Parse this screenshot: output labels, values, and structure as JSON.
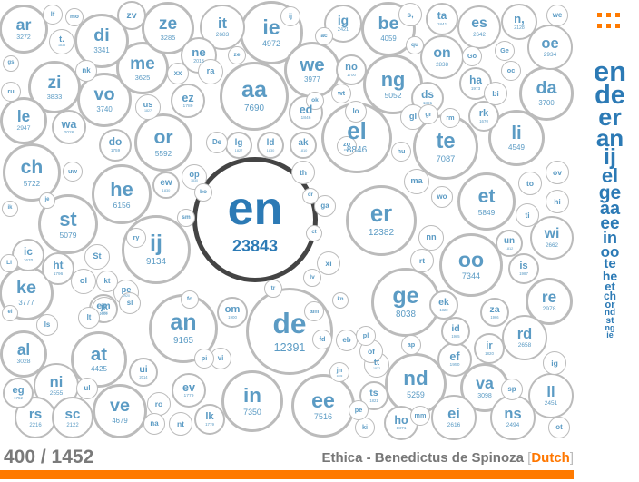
{
  "counter": "400 / 1452",
  "book": {
    "title": "Ethica - Benedictus de Spinoza",
    "bracket_open": "[",
    "language": "Dutch",
    "bracket_close": "]"
  },
  "menu_icon": "grid-dots-icon",
  "colors": {
    "accent": "#ff7a00",
    "bubble_text": "#5b9bc4",
    "bubble_border": "#bbbbbb",
    "highlight_border": "#444444",
    "sidebar_text": "#2c7ab5"
  },
  "bubbles": [
    {
      "w": "en",
      "c": "23843"
    },
    {
      "w": "de",
      "c": "12391"
    },
    {
      "w": "er",
      "c": "12382"
    },
    {
      "w": "an",
      "c": "9165"
    },
    {
      "w": "ij",
      "c": "9134"
    },
    {
      "w": "el",
      "c": "8846"
    },
    {
      "w": "ge",
      "c": "8038"
    },
    {
      "w": "aa",
      "c": "7690"
    },
    {
      "w": "ee",
      "c": "7516"
    },
    {
      "w": "in",
      "c": "7350"
    },
    {
      "w": "oo",
      "c": "7344"
    },
    {
      "w": "te",
      "c": "7087"
    },
    {
      "w": "he",
      "c": "6156"
    },
    {
      "w": "et",
      "c": "5849"
    },
    {
      "w": "ch",
      "c": "5722"
    },
    {
      "w": "or",
      "c": "5592"
    },
    {
      "w": "nd",
      "c": "5259"
    },
    {
      "w": "st",
      "c": "5079"
    },
    {
      "w": "ng",
      "c": "5052"
    },
    {
      "w": "ie",
      "c": "4972"
    },
    {
      "w": "ve",
      "c": "4679"
    },
    {
      "w": "li",
      "c": "4549"
    },
    {
      "w": "at",
      "c": "4425"
    },
    {
      "w": "be",
      "c": "4059"
    },
    {
      "w": "we",
      "c": "3977"
    },
    {
      "w": "zi",
      "c": "3833"
    },
    {
      "w": "ke",
      "c": "3777"
    },
    {
      "w": "vo",
      "c": "3740"
    },
    {
      "w": "da",
      "c": "3700"
    },
    {
      "w": "me",
      "c": "3625"
    },
    {
      "w": "di",
      "c": "3341"
    },
    {
      "w": "ze",
      "c": "3285"
    },
    {
      "w": "ar",
      "c": "3272"
    },
    {
      "w": "va",
      "c": "3098"
    },
    {
      "w": "al",
      "c": "3028"
    },
    {
      "w": "re",
      "c": "2978"
    },
    {
      "w": "le",
      "c": "2947"
    },
    {
      "w": "oe",
      "c": "2934"
    },
    {
      "w": "on",
      "c": "2838"
    },
    {
      "w": "it",
      "c": "2683"
    },
    {
      "w": "wi",
      "c": "2662"
    },
    {
      "w": "rd",
      "c": "2658"
    },
    {
      "w": "es",
      "c": "2642"
    },
    {
      "w": "ei",
      "c": "2616"
    },
    {
      "w": "ni",
      "c": "2555"
    },
    {
      "w": "ll",
      "c": "2451"
    },
    {
      "w": "ns",
      "c": "2494"
    },
    {
      "w": "ig",
      "c": "2421"
    },
    {
      "w": "rs",
      "c": "2216"
    },
    {
      "w": "sc",
      "c": "2122"
    },
    {
      "w": "n,",
      "c": "2128"
    },
    {
      "w": "wa",
      "c": "2026"
    },
    {
      "w": "ne",
      "c": "2013"
    },
    {
      "w": "ef",
      "c": "1950"
    },
    {
      "w": "ds",
      "c": "1891"
    },
    {
      "w": "ta",
      "c": "1841"
    },
    {
      "w": "ho",
      "c": "1871"
    },
    {
      "w": "ed",
      "c": "1846"
    },
    {
      "w": "ht",
      "c": "1796"
    },
    {
      "w": "ez",
      "c": "1789"
    },
    {
      "w": "ev",
      "c": "1779"
    },
    {
      "w": "lk",
      "c": "1779"
    },
    {
      "w": "do",
      "c": "1759"
    },
    {
      "w": "eg",
      "c": "1752"
    },
    {
      "w": "ha",
      "c": "1973"
    },
    {
      "w": "no",
      "c": "1700"
    },
    {
      "w": "rk",
      "c": "1670"
    },
    {
      "w": "ic",
      "c": "1670"
    },
    {
      "w": "ld",
      "c": "1830"
    },
    {
      "w": "ir",
      "c": "1820"
    },
    {
      "w": "is",
      "c": "1987"
    },
    {
      "w": "ak",
      "c": "1810"
    },
    {
      "w": "us",
      "c": "1827"
    },
    {
      "w": "lg",
      "c": "1827"
    },
    {
      "w": "ew",
      "c": "1830"
    },
    {
      "w": "op",
      "c": "1830"
    },
    {
      "w": "om",
      "c": "1900"
    },
    {
      "w": "pe",
      "c": "1920"
    },
    {
      "w": "em",
      "c": "1904"
    },
    {
      "w": "ui",
      "c": "2014"
    },
    {
      "w": "jk",
      "c": "2091"
    },
    {
      "w": "za",
      "c": "1966"
    },
    {
      "w": "id",
      "c": "1985"
    },
    {
      "w": "tt",
      "c": "1832"
    },
    {
      "w": "t.",
      "c": "1835"
    },
    {
      "w": "un",
      "c": "1812"
    },
    {
      "w": "ts",
      "c": "1821"
    },
    {
      "w": "ek",
      "c": "1820"
    },
    {
      "w": "ra",
      "c": ""
    },
    {
      "w": "s,",
      "c": ""
    },
    {
      "w": "St",
      "c": ""
    },
    {
      "w": "ol",
      "c": ""
    },
    {
      "w": "nn",
      "c": ""
    },
    {
      "w": "ti",
      "c": ""
    },
    {
      "w": "hi",
      "c": ""
    },
    {
      "w": "ov",
      "c": ""
    },
    {
      "w": "to",
      "c": ""
    },
    {
      "w": "bi",
      "c": ""
    },
    {
      "w": "gl",
      "c": ""
    },
    {
      "w": "ma",
      "c": ""
    },
    {
      "w": "wo",
      "c": ""
    },
    {
      "w": "lo",
      "c": ""
    },
    {
      "w": "xx",
      "c": ""
    },
    {
      "w": "ro",
      "c": ""
    },
    {
      "w": "nt",
      "c": ""
    },
    {
      "w": "ki",
      "c": ""
    },
    {
      "w": "pe",
      "c": ""
    },
    {
      "w": "ot",
      "c": ""
    },
    {
      "w": "of",
      "c": ""
    },
    {
      "w": "eb",
      "c": ""
    },
    {
      "w": "kt",
      "c": ""
    },
    {
      "w": "sl",
      "c": ""
    },
    {
      "w": "ls",
      "c": ""
    },
    {
      "w": "na",
      "c": ""
    },
    {
      "w": "ru",
      "c": ""
    },
    {
      "w": "nk",
      "c": ""
    },
    {
      "w": "hu",
      "c": ""
    },
    {
      "w": "rt",
      "c": ""
    },
    {
      "w": "ap",
      "c": ""
    },
    {
      "w": "mm",
      "c": ""
    },
    {
      "w": "gr",
      "c": ""
    },
    {
      "w": "oc",
      "c": ""
    },
    {
      "w": "rm",
      "c": ""
    },
    {
      "w": "Go",
      "c": ""
    },
    {
      "w": "Ge",
      "c": ""
    },
    {
      "w": "De",
      "c": ""
    },
    {
      "w": "th",
      "c": ""
    },
    {
      "w": "vi",
      "c": ""
    },
    {
      "w": "uw",
      "c": ""
    },
    {
      "w": "ul",
      "c": ""
    },
    {
      "w": "lt",
      "c": ""
    },
    {
      "w": "fd",
      "c": ""
    },
    {
      "w": "wt",
      "c": ""
    },
    {
      "w": "zo",
      "c": "1681"
    },
    {
      "w": "am",
      "c": ""
    },
    {
      "w": "pl",
      "c": ""
    },
    {
      "w": "ig",
      "c": ""
    },
    {
      "w": "sp",
      "c": ""
    },
    {
      "w": "jn",
      "c": "1833"
    },
    {
      "w": "ok",
      "c": ""
    },
    {
      "w": "ac",
      "c": ""
    },
    {
      "w": "zv",
      "c": ""
    },
    {
      "w": "lf",
      "c": ""
    },
    {
      "w": "mo",
      "c": ""
    },
    {
      "w": "qu",
      "c": ""
    },
    {
      "w": "we",
      "c": ""
    },
    {
      "w": "ze",
      "c": ""
    },
    {
      "w": "pi",
      "c": ""
    },
    {
      "w": "ij",
      "c": ""
    },
    {
      "w": "ga",
      "c": ""
    },
    {
      "w": "xi",
      "c": ""
    },
    {
      "w": "sm",
      "c": ""
    },
    {
      "w": "ry",
      "c": ""
    },
    {
      "w": "fo",
      "c": ""
    },
    {
      "w": "bo",
      "c": ""
    },
    {
      "w": "dr",
      "c": ""
    },
    {
      "w": "ct",
      "c": ""
    },
    {
      "w": "lv",
      "c": ""
    },
    {
      "w": "kn",
      "c": ""
    },
    {
      "w": "tr",
      "c": ""
    },
    {
      "w": "Li",
      "c": ""
    },
    {
      "w": "ik",
      "c": ""
    },
    {
      "w": "el",
      "c": ""
    },
    {
      "w": "gs",
      "c": ""
    },
    {
      "w": "je",
      "c": ""
    },
    {
      "w": "ti",
      "c": ""
    },
    {
      "w": "oi",
      "c": ""
    },
    {
      "w": "bl",
      "c": ""
    }
  ],
  "sidebar_words": [
    "en",
    "de",
    "er",
    "an",
    "ij",
    "el",
    "ge",
    "aa",
    "ee",
    "in",
    "oo",
    "te",
    "he",
    "et",
    "ch",
    "or",
    "nd",
    "st",
    "ng",
    "ie"
  ]
}
